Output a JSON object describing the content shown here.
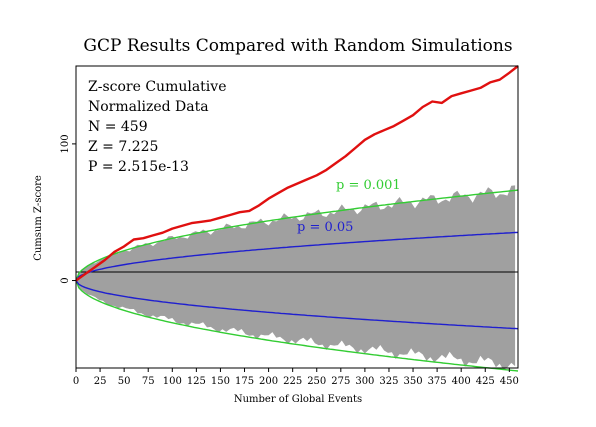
{
  "chart_data": {
    "type": "line",
    "title": "GCP Results Compared with Random Simulations",
    "xlabel": "Number of Global Events",
    "ylabel": "Cumsum Z-score",
    "xlim": [
      0,
      459
    ],
    "ylim": [
      -64,
      157
    ],
    "xticks": [
      0,
      25,
      50,
      75,
      100,
      125,
      150,
      175,
      200,
      225,
      250,
      275,
      300,
      325,
      350,
      375,
      400,
      425,
      450
    ],
    "yticks": [
      0,
      100
    ],
    "grid": false,
    "stats": {
      "line1": "Z-score Cumulative",
      "line2": "Normalized Data",
      "line3": "N = 459",
      "line4": "Z = 7.225",
      "line5": "P = 2.515e-13"
    },
    "envelopes": [
      {
        "label": "p = 0.001",
        "color": "#33cc33",
        "z": 3.09
      },
      {
        "label": "p = 0.05",
        "color": "#1f1fcf",
        "z": 1.645
      }
    ],
    "simulation_band": {
      "color": "#a0a0a0",
      "description_upper_at_end": 66,
      "description_lower_at_end": -62
    },
    "series": [
      {
        "color": "#e01010",
        "x": [
          0,
          10,
          20,
          30,
          40,
          50,
          60,
          70,
          80,
          90,
          100,
          110,
          120,
          130,
          140,
          150,
          160,
          170,
          180,
          190,
          200,
          210,
          220,
          230,
          240,
          250,
          260,
          270,
          280,
          290,
          300,
          310,
          320,
          330,
          340,
          350,
          360,
          370,
          380,
          390,
          400,
          410,
          420,
          430,
          440,
          450,
          459
        ],
        "y": [
          0,
          5,
          10,
          15,
          21,
          25,
          30,
          31,
          33,
          35,
          38,
          40,
          42,
          43,
          44,
          46,
          48,
          50,
          51,
          55,
          60,
          64,
          68,
          71,
          74,
          77,
          81,
          86,
          91,
          97,
          103,
          107,
          110,
          113,
          117,
          121,
          127,
          131,
          130,
          135,
          137,
          139,
          141,
          145,
          147,
          152,
          157
        ]
      }
    ]
  }
}
